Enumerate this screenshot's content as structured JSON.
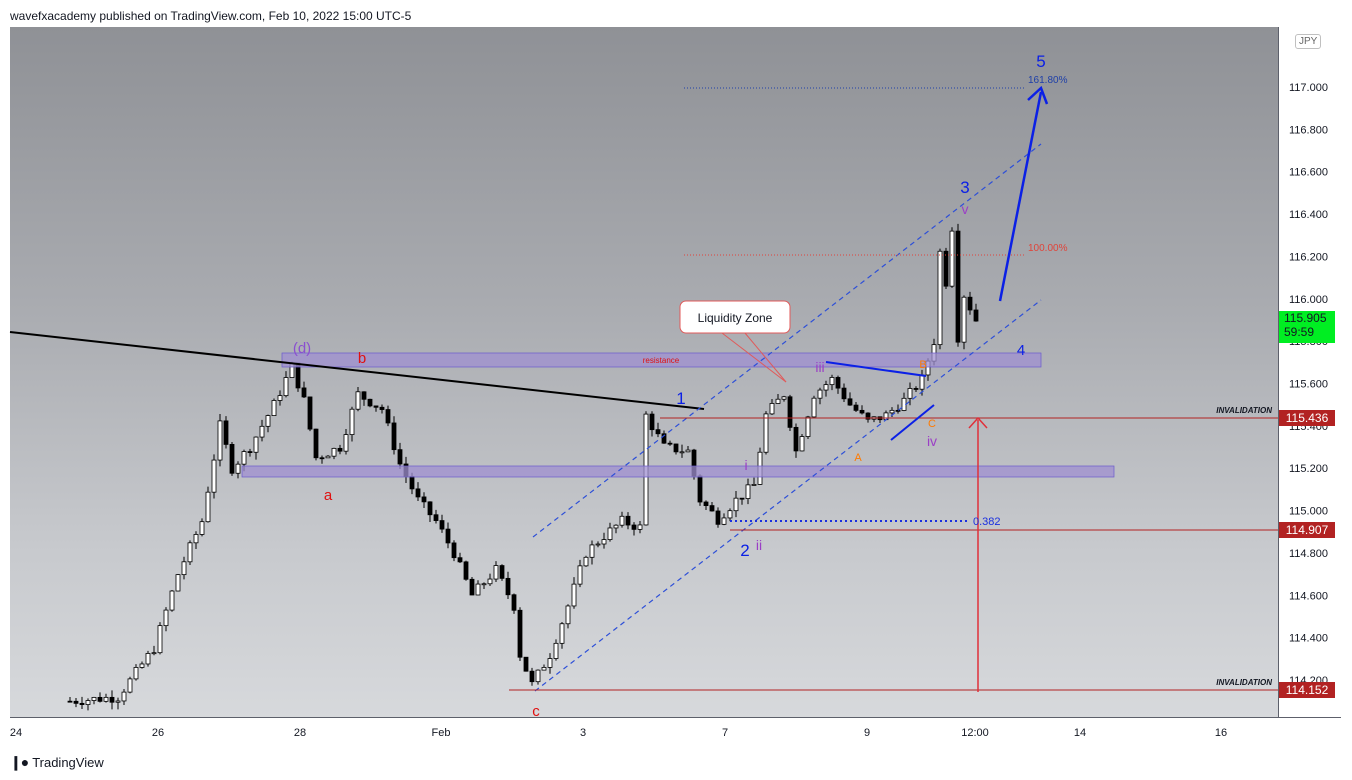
{
  "header": {
    "publisher_line": "wavefxacademy published on TradingView.com, Feb 10, 2022 15:00 UTC-5"
  },
  "footer": {
    "logo_text": "TradingView"
  },
  "symbol_badge": "JPY",
  "colors": {
    "up": "#000000",
    "wave_blue": "#0b20e6",
    "red": "#d81b1b",
    "purple_zone": "#9f8fd0",
    "current_price_tag": "#00ee22",
    "invalidation_tag": "#b22222"
  },
  "chart_data": {
    "type": "candlestick",
    "price_axis": {
      "ticks": [
        "117.000",
        "116.800",
        "116.600",
        "116.400",
        "116.200",
        "116.000",
        "115.800",
        "115.600",
        "115.400",
        "115.200",
        "115.000",
        "114.800",
        "114.600",
        "114.400",
        "114.200"
      ],
      "ylim": [
        114.05,
        117.25
      ],
      "current_price": "115.905",
      "countdown": "59:59",
      "invalidation_upper": "115.436",
      "level_mid": "114.907",
      "invalidation_lower": "114.152"
    },
    "time_axis": {
      "ticks": [
        "24",
        "26",
        "28",
        "Feb",
        "3",
        "7",
        "9",
        "12:00",
        "14",
        "16"
      ]
    },
    "price_path": [
      [
        0,
        114.1
      ],
      [
        8,
        114.12
      ],
      [
        14,
        114.35
      ],
      [
        18,
        114.7
      ],
      [
        22,
        114.95
      ],
      [
        25,
        115.4
      ],
      [
        27,
        115.2
      ],
      [
        30,
        115.3
      ],
      [
        34,
        115.5
      ],
      [
        37,
        115.68
      ],
      [
        39,
        115.52
      ],
      [
        41,
        115.25
      ],
      [
        45,
        115.3
      ],
      [
        48,
        115.55
      ],
      [
        52,
        115.48
      ],
      [
        55,
        115.22
      ],
      [
        58,
        115.05
      ],
      [
        61,
        114.95
      ],
      [
        64,
        114.8
      ],
      [
        67,
        114.6
      ],
      [
        71,
        114.72
      ],
      [
        74,
        114.55
      ],
      [
        75,
        114.32
      ],
      [
        77,
        114.18
      ],
      [
        80,
        114.32
      ],
      [
        83,
        114.55
      ],
      [
        86,
        114.8
      ],
      [
        89,
        114.88
      ],
      [
        92,
        114.95
      ],
      [
        95,
        114.92
      ],
      [
        96,
        115.45
      ],
      [
        99,
        115.3
      ],
      [
        103,
        115.28
      ],
      [
        105,
        115.05
      ],
      [
        108,
        114.96
      ],
      [
        111,
        115.05
      ],
      [
        114,
        115.12
      ],
      [
        116,
        115.45
      ],
      [
        119,
        115.55
      ],
      [
        121,
        115.28
      ],
      [
        124,
        115.55
      ],
      [
        127,
        115.62
      ],
      [
        130,
        115.5
      ],
      [
        133,
        115.42
      ],
      [
        136,
        115.45
      ],
      [
        139,
        115.52
      ],
      [
        142,
        115.62
      ],
      [
        144,
        115.8
      ],
      [
        145,
        116.22
      ],
      [
        146,
        116.08
      ],
      [
        147,
        116.34
      ],
      [
        148,
        115.82
      ],
      [
        149,
        116.02
      ],
      [
        151,
        115.9
      ]
    ],
    "annotations": {
      "wave_1": "1",
      "wave_2": "2",
      "wave_3": "3",
      "wave_4": "4",
      "wave_5": "5",
      "sub_i": "i",
      "sub_ii": "ii",
      "sub_iii": "iii",
      "sub_iv": "iv",
      "sub_v": "v",
      "abc_a": "a",
      "abc_b": "b",
      "abc_c": "c",
      "abc_d": "(d)",
      "corr_A": "A",
      "corr_B": "B",
      "corr_C": "C",
      "fib_161": "161.80%",
      "fib_100": "100.00%",
      "fib_0382": "0.382",
      "resistance": "resistance",
      "liquidity_zone": "Liquidity Zone",
      "invalidation_upper": "INVALIDATION",
      "invalidation_lower": "INVALIDATION"
    }
  }
}
